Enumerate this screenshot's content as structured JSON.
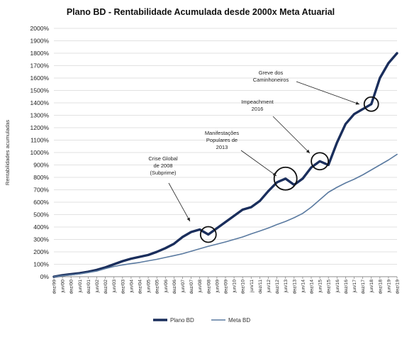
{
  "chart_data": {
    "type": "line",
    "title": "Plano BD - Rentabilidade Acumulada desde 2000x Meta Atuarial",
    "ylabel": "Rentabilidades acumuladas",
    "xlabel": "",
    "ylim": [
      0,
      2000
    ],
    "y_ticks": [
      "0%",
      "100%",
      "200%",
      "300%",
      "400%",
      "500%",
      "600%",
      "700%",
      "800%",
      "900%",
      "1000%",
      "1100%",
      "1200%",
      "1300%",
      "1400%",
      "1500%",
      "1600%",
      "1700%",
      "1800%",
      "1900%",
      "2000%"
    ],
    "x_ticks": [
      "dez/99",
      "jun/00",
      "dez/00",
      "jun/01",
      "dez/01",
      "jun/02",
      "dez/02",
      "jun/03",
      "dez/03",
      "jun/04",
      "dez/04",
      "jun/05",
      "dez/05",
      "jun/06",
      "dez/06",
      "jun/07",
      "dez/07",
      "jun/08",
      "dez/08",
      "jun/09",
      "dez/09",
      "jun/10",
      "dez/10",
      "jun/11",
      "dez/11",
      "jun/12",
      "dez/12",
      "jun/13",
      "dez/13",
      "jun/14",
      "dez/14",
      "jun/15",
      "dez/15",
      "jun/16",
      "dez/16",
      "jun/17",
      "dez/17",
      "jun/18",
      "dez/18",
      "jun/19",
      "dez/19"
    ],
    "grid": true,
    "legend_position": "bottom",
    "series": [
      {
        "name": "Plano BD",
        "color": "#1a2e5c",
        "values": [
          0,
          12,
          20,
          28,
          40,
          55,
          75,
          100,
          125,
          145,
          160,
          175,
          200,
          230,
          265,
          320,
          360,
          380,
          340,
          390,
          440,
          490,
          540,
          560,
          610,
          690,
          760,
          790,
          740,
          790,
          880,
          930,
          900,
          1080,
          1230,
          1310,
          1350,
          1390,
          1600,
          1720,
          1800
        ]
      },
      {
        "name": "Meta BD",
        "color": "#5a7aa0",
        "values": [
          0,
          8,
          15,
          22,
          33,
          45,
          65,
          82,
          95,
          105,
          115,
          128,
          140,
          155,
          170,
          185,
          205,
          225,
          245,
          262,
          280,
          300,
          320,
          345,
          368,
          392,
          420,
          445,
          475,
          510,
          560,
          620,
          680,
          720,
          755,
          785,
          820,
          860,
          900,
          940,
          985
        ]
      }
    ],
    "annotations": [
      {
        "text": [
          "Crise Global",
          "de 2008",
          "(Subprime)"
        ],
        "x": "dez/08"
      },
      {
        "text": [
          "Manifestações",
          "Populares de",
          "2013"
        ],
        "x": "jun/13"
      },
      {
        "text": [
          "Impeachment",
          "2016"
        ],
        "x": "jun/15"
      },
      {
        "text": [
          "Greve dos",
          "Caminhoneiros"
        ],
        "x": "jun/18"
      }
    ]
  }
}
